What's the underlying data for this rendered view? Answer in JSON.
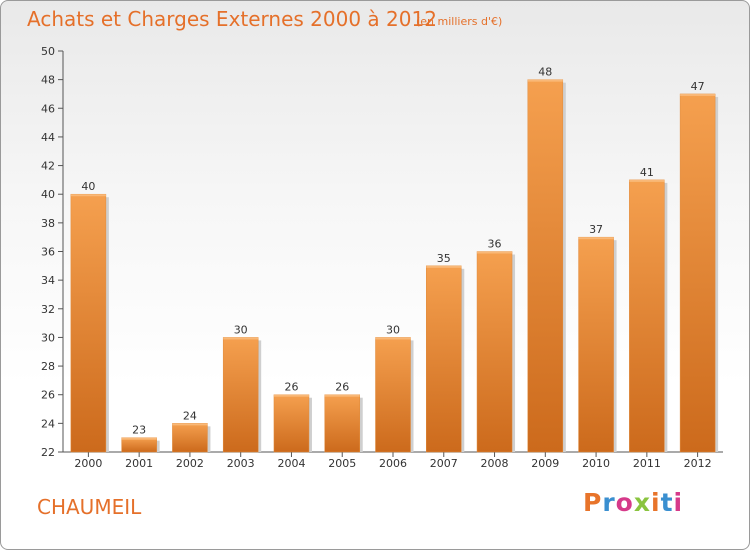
{
  "header": {
    "title": "Achats et Charges Externes 2000 à 2012",
    "subtitle": "(en milliers d'€)"
  },
  "footer": {
    "place_name": "CHAUMEIL",
    "logo_text": "Proxiti",
    "logo_colors": [
      "#e8742a",
      "#3a8fd0",
      "#d63a8a",
      "#8ac43f",
      "#e8742a",
      "#3a8fd0",
      "#d63a8a"
    ]
  },
  "colors": {
    "title": "#e5702a",
    "bar_light": "#f5a04f",
    "bar_dark": "#cc6a1c"
  },
  "chart_data": {
    "type": "bar",
    "title": "Achats et Charges Externes 2000 à 2012",
    "subtitle": "(en milliers d'€)",
    "xlabel": "",
    "ylabel": "",
    "categories": [
      "2000",
      "2001",
      "2002",
      "2003",
      "2004",
      "2005",
      "2006",
      "2007",
      "2008",
      "2009",
      "2010",
      "2011",
      "2012"
    ],
    "values": [
      40,
      23,
      24,
      30,
      26,
      26,
      30,
      35,
      36,
      48,
      37,
      41,
      47
    ],
    "ylim": [
      22,
      50
    ],
    "yticks": [
      22,
      24,
      26,
      28,
      30,
      32,
      34,
      36,
      38,
      40,
      42,
      44,
      46,
      48,
      50
    ],
    "grid": false,
    "data_labels": true
  }
}
